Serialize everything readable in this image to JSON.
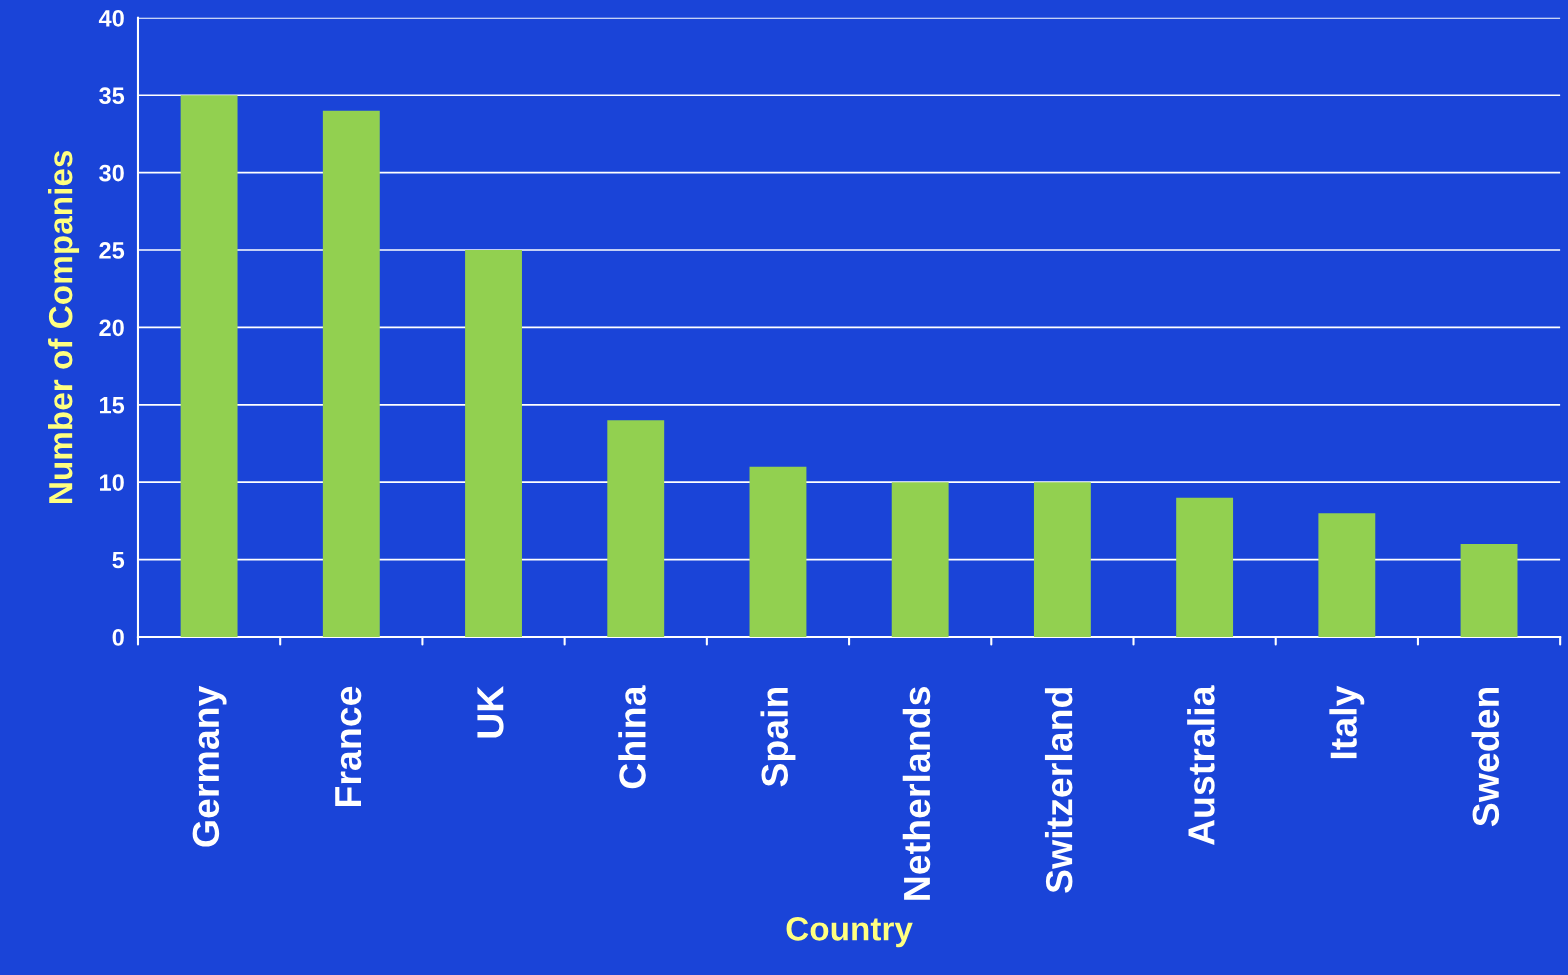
{
  "chart_data": {
    "type": "bar",
    "xlabel": "Country",
    "ylabel": "Number of Companies",
    "categories": [
      "Germany",
      "France",
      "UK",
      "China",
      "Spain",
      "Netherlands",
      "Switzerland",
      "Australia",
      "Italy",
      "Sweden"
    ],
    "values": [
      35,
      34,
      25,
      14,
      11,
      10,
      10,
      9,
      8,
      6
    ],
    "color": "#92d050",
    "ylim": [
      0,
      40
    ],
    "yticks": [
      0,
      5,
      10,
      15,
      20,
      25,
      30,
      35,
      40
    ],
    "grid": "y"
  }
}
